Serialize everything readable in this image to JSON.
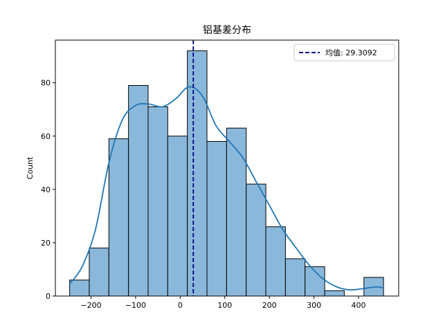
{
  "chart_data": {
    "type": "bar",
    "title": "铝基差分布",
    "xlabel": "",
    "ylabel": "Count",
    "xlim": [
      -280,
      490
    ],
    "ylim": [
      0,
      96
    ],
    "xticks": [
      -200,
      -100,
      0,
      100,
      200,
      300,
      400
    ],
    "xtick_labels": [
      "−200",
      "−100",
      "0",
      "100",
      "200",
      "300",
      "400"
    ],
    "yticks": [
      0,
      20,
      40,
      60,
      80
    ],
    "bin_edges": [
      -248,
      -204,
      -160,
      -116,
      -72,
      -28,
      16,
      60,
      104,
      148,
      192,
      236,
      280,
      324,
      368,
      412,
      456
    ],
    "counts": [
      6,
      18,
      59,
      79,
      71,
      60,
      92,
      58,
      63,
      42,
      26,
      14,
      11,
      2,
      0,
      7
    ],
    "kde": {
      "x": [
        -248,
        -220,
        -190,
        -160,
        -130,
        -100,
        -70,
        -40,
        -10,
        20,
        50,
        80,
        110,
        140,
        170,
        200,
        230,
        260,
        290,
        320,
        350,
        380,
        410,
        440,
        456
      ],
      "y": [
        4.5,
        11,
        25,
        50,
        66,
        71.5,
        72,
        71,
        74,
        78.5,
        75,
        64,
        58,
        52,
        43,
        34,
        25,
        18,
        11.5,
        6.5,
        3.5,
        2.3,
        2.8,
        3.4,
        3
      ]
    },
    "mean": 29.3092,
    "legend": {
      "entries": [
        {
          "label": "均值: 29.3092",
          "color": "#00008b",
          "style": "dashed"
        }
      ],
      "placement": "top-right"
    },
    "colors": {
      "bar_fill": "#8ab8db",
      "bar_edge": "#000000",
      "kde_line": "#1f77b4",
      "mean_line": "#00008b"
    },
    "grid": false
  }
}
